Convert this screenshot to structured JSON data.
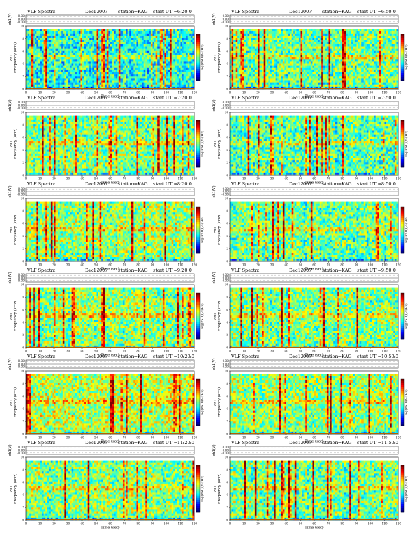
{
  "chart_data": [
    {
      "type": "heatmap",
      "title": "VLF Spectra",
      "date": "Dec12007",
      "station": "station=KAG",
      "start": "start UT =6:20:0",
      "xlabel": "Time (sec)",
      "ylabel": "Frequency (kHz)",
      "channel_label": "ch1",
      "strip_label": "ch1(V)",
      "strip_ticks": [
        "0.30",
        "0.00",
        "-0.30"
      ],
      "colorbar_label": "log(PSD)(V²/Hz)",
      "xticks": [
        "0",
        "10",
        "20",
        "30",
        "40",
        "50",
        "60",
        "70",
        "80",
        "90",
        "100",
        "110",
        "120"
      ],
      "yticks": [
        "0",
        "2",
        "4",
        "6",
        "8",
        "10"
      ],
      "xlim": [
        0,
        120
      ],
      "ylim": [
        0,
        10
      ],
      "colormap": "jet",
      "band_top_khz": 9.5,
      "intensity": 0.4
    },
    {
      "type": "heatmap",
      "title": "VLF Spectra",
      "date": "Dec12007",
      "station": "station=KAG",
      "start": "start UT =6:50:0",
      "xlabel": "Time (sec)",
      "ylabel": "Frequency (kHz)",
      "channel_label": "ch1",
      "strip_label": "ch1(V)",
      "strip_ticks": [
        "0.30",
        "0.00",
        "-0.30"
      ],
      "colorbar_label": "log(PSD)(V²/Hz)",
      "xticks": [
        "0",
        "10",
        "20",
        "30",
        "40",
        "50",
        "60",
        "70",
        "80",
        "90",
        "100",
        "110",
        "120"
      ],
      "yticks": [
        "0",
        "2",
        "4",
        "6",
        "8",
        "10"
      ],
      "xlim": [
        0,
        120
      ],
      "ylim": [
        0,
        10
      ],
      "colormap": "jet",
      "band_top_khz": 9.5,
      "intensity": 0.48
    },
    {
      "type": "heatmap",
      "title": "VLF Spectra",
      "date": "Dec12007",
      "station": "station=KAG",
      "start": "start UT =7:20:0",
      "xlabel": "Time (sec)",
      "ylabel": "Frequency (kHz)",
      "channel_label": "ch1",
      "strip_label": "ch1(V)",
      "strip_ticks": [
        "0.30",
        "0.00",
        "-0.30"
      ],
      "colorbar_label": "log(PSD)(V²/Hz)",
      "xticks": [
        "0",
        "10",
        "20",
        "30",
        "40",
        "50",
        "60",
        "70",
        "80",
        "90",
        "100",
        "110",
        "120"
      ],
      "yticks": [
        "0",
        "2",
        "4",
        "6",
        "8",
        "10"
      ],
      "xlim": [
        0,
        120
      ],
      "ylim": [
        0,
        10
      ],
      "colormap": "jet",
      "band_top_khz": 9.5,
      "intensity": 0.5
    },
    {
      "type": "heatmap",
      "title": "VLF Spectra",
      "date": "Dec12007",
      "station": "station=KAG",
      "start": "start UT =7:50:0",
      "xlabel": "Time (sec)",
      "ylabel": "Frequency (kHz)",
      "channel_label": "ch1",
      "strip_label": "ch1(V)",
      "strip_ticks": [
        "0.30",
        "0.00",
        "-0.30"
      ],
      "colorbar_label": "log(PSD)(V²/Hz)",
      "xticks": [
        "0",
        "10",
        "20",
        "30",
        "40",
        "50",
        "60",
        "70",
        "80",
        "90",
        "100",
        "110",
        "120"
      ],
      "yticks": [
        "0",
        "2",
        "4",
        "6",
        "8",
        "10"
      ],
      "xlim": [
        0,
        120
      ],
      "ylim": [
        0,
        10
      ],
      "colormap": "jet",
      "band_top_khz": 9.5,
      "intensity": 0.46
    },
    {
      "type": "heatmap",
      "title": "VLF Spectra",
      "date": "Dec12007",
      "station": "station=KAG",
      "start": "start UT =8:20:0",
      "xlabel": "Time (sec)",
      "ylabel": "Frequency (kHz)",
      "channel_label": "ch1",
      "strip_label": "ch1(V)",
      "strip_ticks": [
        "0.30",
        "0.00",
        "-0.30"
      ],
      "colorbar_label": "log(PSD)(V²/Hz)",
      "xticks": [
        "0",
        "10",
        "20",
        "30",
        "40",
        "50",
        "60",
        "70",
        "80",
        "90",
        "100",
        "110",
        "120"
      ],
      "yticks": [
        "0",
        "2",
        "4",
        "6",
        "8",
        "10"
      ],
      "xlim": [
        0,
        120
      ],
      "ylim": [
        0,
        10
      ],
      "colormap": "jet",
      "band_top_khz": 9.5,
      "intensity": 0.52
    },
    {
      "type": "heatmap",
      "title": "VLF Spectra",
      "date": "Dec12007",
      "station": "station=KAG",
      "start": "start UT =8:50:0",
      "xlabel": "Time (sec)",
      "ylabel": "Frequency (kHz)",
      "channel_label": "ch1",
      "strip_label": "ch1(V)",
      "strip_ticks": [
        "0.30",
        "0.00",
        "-0.30"
      ],
      "colorbar_label": "log(PSD)(V²/Hz)",
      "xticks": [
        "0",
        "10",
        "20",
        "30",
        "40",
        "50",
        "60",
        "70",
        "80",
        "90",
        "100",
        "110",
        "120"
      ],
      "yticks": [
        "0",
        "2",
        "4",
        "6",
        "8",
        "10"
      ],
      "xlim": [
        0,
        120
      ],
      "ylim": [
        0,
        10
      ],
      "colormap": "jet",
      "band_top_khz": 9.5,
      "intensity": 0.48
    },
    {
      "type": "heatmap",
      "title": "VLF Spectra",
      "date": "Dec12007",
      "station": "station=KAG",
      "start": "start UT =9:20:0",
      "xlabel": "Time (sec)",
      "ylabel": "Frequency (kHz)",
      "channel_label": "ch1",
      "strip_label": "ch1(V)",
      "strip_ticks": [
        "0.30",
        "0.00",
        "-0.30"
      ],
      "colorbar_label": "log(PSD)(V²/Hz)",
      "xticks": [
        "0",
        "10",
        "20",
        "30",
        "40",
        "50",
        "60",
        "70",
        "80",
        "90",
        "100",
        "110",
        "120"
      ],
      "yticks": [
        "0",
        "2",
        "4",
        "6",
        "8",
        "10"
      ],
      "xlim": [
        0,
        120
      ],
      "ylim": [
        0,
        10
      ],
      "colormap": "jet",
      "band_top_khz": 9.5,
      "intensity": 0.52
    },
    {
      "type": "heatmap",
      "title": "VLF Spectra",
      "date": "Dec12007",
      "station": "station=KAG",
      "start": "start UT =9:50:0",
      "xlabel": "Time (sec)",
      "ylabel": "Frequency (kHz)",
      "channel_label": "ch1",
      "strip_label": "ch1(V)",
      "strip_ticks": [
        "0.30",
        "0.00",
        "-0.30"
      ],
      "colorbar_label": "log(PSD)(V²/Hz)",
      "xticks": [
        "0",
        "10",
        "20",
        "30",
        "40",
        "50",
        "60",
        "70",
        "80",
        "90",
        "100",
        "110",
        "120"
      ],
      "yticks": [
        "0",
        "2",
        "4",
        "6",
        "8",
        "10"
      ],
      "xlim": [
        0,
        120
      ],
      "ylim": [
        0,
        10
      ],
      "colormap": "jet",
      "band_top_khz": 9.5,
      "intensity": 0.5
    },
    {
      "type": "heatmap",
      "title": "VLF Spectra",
      "date": "Dec12007",
      "station": "station=KAG",
      "start": "start UT =10:20:0",
      "xlabel": "Time (sec)",
      "ylabel": "Frequency (kHz)",
      "channel_label": "ch1",
      "strip_label": "ch1(V)",
      "strip_ticks": [
        "0.30",
        "0.00",
        "-0.30"
      ],
      "colorbar_label": "log(PSD)(V²/Hz)",
      "xticks": [
        "0",
        "10",
        "20",
        "30",
        "40",
        "50",
        "60",
        "70",
        "80",
        "90",
        "100",
        "110",
        "120"
      ],
      "yticks": [
        "0",
        "2",
        "4",
        "6",
        "8",
        "10"
      ],
      "xlim": [
        0,
        120
      ],
      "ylim": [
        0,
        10
      ],
      "colormap": "jet",
      "band_top_khz": 9.5,
      "intensity": 0.56
    },
    {
      "type": "heatmap",
      "title": "VLF Spectra",
      "date": "Dec12007",
      "station": "station=KAG",
      "start": "start UT =10:50:0",
      "xlabel": "Time (sec)",
      "ylabel": "Frequency (kHz)",
      "channel_label": "ch1",
      "strip_label": "ch1(V)",
      "strip_ticks": [
        "0.30",
        "0.00",
        "-0.30"
      ],
      "colorbar_label": "log(PSD)(V²/Hz)",
      "xticks": [
        "0",
        "10",
        "20",
        "30",
        "40",
        "50",
        "60",
        "70",
        "80",
        "90",
        "100",
        "110",
        "120"
      ],
      "yticks": [
        "0",
        "2",
        "4",
        "6",
        "8",
        "10"
      ],
      "xlim": [
        0,
        120
      ],
      "ylim": [
        0,
        10
      ],
      "colormap": "jet",
      "band_top_khz": 9.5,
      "intensity": 0.52
    },
    {
      "type": "heatmap",
      "title": "VLF Spectra",
      "date": "Dec12007",
      "station": "station=KAG",
      "start": "start UT =11:20:0",
      "xlabel": "Time (sec)",
      "ylabel": "Frequency (kHz)",
      "channel_label": "ch1",
      "strip_label": "ch1(V)",
      "strip_ticks": [
        "0.30",
        "0.00",
        "-0.30"
      ],
      "colorbar_label": "log(PSD)(V²/Hz)",
      "xticks": [
        "0",
        "10",
        "20",
        "30",
        "40",
        "50",
        "60",
        "70",
        "80",
        "90",
        "100",
        "110",
        "120"
      ],
      "yticks": [
        "0",
        "2",
        "4",
        "6",
        "8",
        "10"
      ],
      "xlim": [
        0,
        120
      ],
      "ylim": [
        0,
        10
      ],
      "colormap": "jet",
      "band_top_khz": 9.5,
      "intensity": 0.5
    },
    {
      "type": "heatmap",
      "title": "VLF Spectra",
      "date": "Dec12007",
      "station": "station=KAG",
      "start": "start UT =11:50:0",
      "xlabel": "Time (sec)",
      "ylabel": "Frequency (kHz)",
      "channel_label": "ch1",
      "strip_label": "ch1(V)",
      "strip_ticks": [
        "0.30",
        "0.00",
        "-0.30"
      ],
      "colorbar_label": "log(PSD)(V²/Hz)",
      "xticks": [
        "0",
        "10",
        "20",
        "30",
        "40",
        "50",
        "60",
        "70",
        "80",
        "90",
        "100",
        "110",
        "120"
      ],
      "yticks": [
        "0",
        "2",
        "4",
        "6",
        "8",
        "10"
      ],
      "xlim": [
        0,
        120
      ],
      "ylim": [
        0,
        10
      ],
      "colormap": "jet",
      "band_top_khz": 9.5,
      "intensity": 0.5
    }
  ]
}
